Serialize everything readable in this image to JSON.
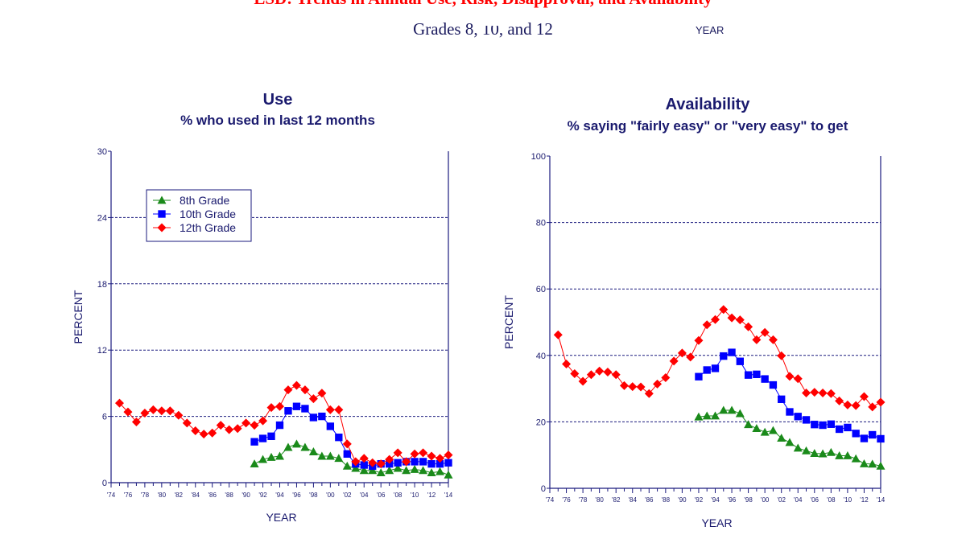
{
  "header": {
    "title": "LSD: Trends in Annual Use, Risk, Disapproval, and Availability",
    "subtitle": "Grades 8, 10, and 12",
    "stray_axis_label": "YEAR"
  },
  "colors": {
    "axis": "#1a1a7e",
    "text": "#1a1a6e",
    "grade8": "#1a8a1a",
    "grade10": "#0000ff",
    "grade12": "#ff0000"
  },
  "chart_data": [
    {
      "type": "line",
      "title": "Use",
      "subtitle": "% who used in last 12 months",
      "xlabel": "YEAR",
      "ylabel": "PERCENT",
      "xlim": [
        1974,
        2014
      ],
      "ylim": [
        0,
        30
      ],
      "yticks": [
        0,
        6,
        12,
        18,
        24,
        30
      ],
      "xtick_labels": [
        "'74",
        "'76",
        "'78",
        "'80",
        "'82",
        "'84",
        "'86",
        "'88",
        "'90",
        "'92",
        "'94",
        "'96",
        "'98",
        "'00",
        "'02",
        "'04",
        "'06",
        "'08",
        "'10",
        "'12",
        "'14"
      ],
      "grid": "horizontal dashed",
      "legend": "top-left",
      "series": [
        {
          "name": "8th Grade",
          "marker": "triangle",
          "x": [
            1991,
            1992,
            1993,
            1994,
            1995,
            1996,
            1997,
            1998,
            1999,
            2000,
            2001,
            2002,
            2003,
            2004,
            2005,
            2006,
            2007,
            2008,
            2009,
            2010,
            2011,
            2012,
            2013,
            2014
          ],
          "values": [
            1.7,
            2.1,
            2.3,
            2.4,
            3.2,
            3.5,
            3.2,
            2.8,
            2.4,
            2.4,
            2.2,
            1.5,
            1.3,
            1.1,
            1.1,
            0.9,
            1.1,
            1.3,
            1.1,
            1.2,
            1.1,
            0.9,
            1.0,
            0.7
          ]
        },
        {
          "name": "10th Grade",
          "marker": "square",
          "x": [
            1991,
            1992,
            1993,
            1994,
            1995,
            1996,
            1997,
            1998,
            1999,
            2000,
            2001,
            2002,
            2003,
            2004,
            2005,
            2006,
            2007,
            2008,
            2009,
            2010,
            2011,
            2012,
            2013,
            2014
          ],
          "values": [
            3.7,
            4.0,
            4.2,
            5.2,
            6.5,
            6.9,
            6.7,
            5.9,
            6.0,
            5.1,
            4.1,
            2.6,
            1.7,
            1.6,
            1.5,
            1.7,
            1.7,
            1.8,
            1.9,
            1.9,
            1.9,
            1.7,
            1.7,
            1.8
          ]
        },
        {
          "name": "12th Grade",
          "marker": "diamond",
          "x": [
            1975,
            1976,
            1977,
            1978,
            1979,
            1980,
            1981,
            1982,
            1983,
            1984,
            1985,
            1986,
            1987,
            1988,
            1989,
            1990,
            1991,
            1992,
            1993,
            1994,
            1995,
            1996,
            1997,
            1998,
            1999,
            2000,
            2001,
            2002,
            2003,
            2004,
            2005,
            2006,
            2007,
            2008,
            2009,
            2010,
            2011,
            2012,
            2013,
            2014
          ],
          "values": [
            7.2,
            6.4,
            5.5,
            6.3,
            6.6,
            6.5,
            6.5,
            6.1,
            5.4,
            4.7,
            4.4,
            4.5,
            5.2,
            4.8,
            4.9,
            5.4,
            5.2,
            5.6,
            6.8,
            6.9,
            8.4,
            8.8,
            8.4,
            7.6,
            8.1,
            6.6,
            6.6,
            3.5,
            1.9,
            2.2,
            1.8,
            1.7,
            2.1,
            2.7,
            1.9,
            2.6,
            2.7,
            2.4,
            2.2,
            2.5
          ]
        }
      ]
    },
    {
      "type": "line",
      "title": "Availability",
      "subtitle": "% saying \"fairly easy\" or \"very easy\" to get",
      "xlabel": "YEAR",
      "ylabel": "PERCENT",
      "xlim": [
        1974,
        2014
      ],
      "ylim": [
        0,
        100
      ],
      "yticks": [
        0,
        20,
        40,
        60,
        80,
        100
      ],
      "xtick_labels": [
        "'74",
        "'76",
        "'78",
        "'80",
        "'82",
        "'84",
        "'86",
        "'88",
        "'90",
        "'92",
        "'94",
        "'96",
        "'98",
        "'00",
        "'02",
        "'04",
        "'06",
        "'08",
        "'10",
        "'12",
        "'14"
      ],
      "grid": "horizontal dashed",
      "legend": "none",
      "series": [
        {
          "name": "8th Grade",
          "marker": "triangle",
          "x": [
            1992,
            1993,
            1994,
            1995,
            1996,
            1997,
            1998,
            1999,
            2000,
            2001,
            2002,
            2003,
            2004,
            2005,
            2006,
            2007,
            2008,
            2009,
            2010,
            2011,
            2012,
            2013,
            2014
          ],
          "values": [
            21.5,
            21.8,
            21.8,
            23.5,
            23.5,
            22.5,
            19.2,
            18.0,
            16.9,
            17.4,
            15.1,
            13.8,
            12.1,
            11.3,
            10.5,
            10.4,
            10.8,
            9.8,
            9.8,
            8.9,
            7.4,
            7.3,
            6.7
          ]
        },
        {
          "name": "10th Grade",
          "marker": "square",
          "x": [
            1992,
            1993,
            1994,
            1995,
            1996,
            1997,
            1998,
            1999,
            2000,
            2001,
            2002,
            2003,
            2004,
            2005,
            2006,
            2007,
            2008,
            2009,
            2010,
            2011,
            2012,
            2013,
            2014
          ],
          "values": [
            33.6,
            35.6,
            36.1,
            39.8,
            40.9,
            38.2,
            34.1,
            34.3,
            32.9,
            31.1,
            26.8,
            23.0,
            21.6,
            20.6,
            19.2,
            19.0,
            19.3,
            17.8,
            18.3,
            16.5,
            15.0,
            16.1,
            14.9
          ]
        },
        {
          "name": "12th Grade",
          "marker": "diamond",
          "x": [
            1975,
            1976,
            1977,
            1978,
            1979,
            1980,
            1981,
            1982,
            1983,
            1984,
            1985,
            1986,
            1987,
            1988,
            1989,
            1990,
            1991,
            1992,
            1993,
            1994,
            1995,
            1996,
            1997,
            1998,
            1999,
            2000,
            2001,
            2002,
            2003,
            2004,
            2005,
            2006,
            2007,
            2008,
            2009,
            2010,
            2011,
            2012,
            2013,
            2014
          ],
          "values": [
            46.2,
            37.4,
            34.5,
            32.2,
            34.2,
            35.3,
            35.0,
            34.2,
            30.9,
            30.6,
            30.5,
            28.5,
            31.4,
            33.3,
            38.3,
            40.7,
            39.5,
            44.5,
            49.2,
            50.8,
            53.8,
            51.3,
            50.7,
            48.6,
            44.7,
            46.9,
            44.7,
            39.9,
            33.7,
            33.0,
            28.7,
            28.9,
            28.7,
            28.5,
            26.3,
            25.1,
            24.9,
            27.6,
            24.5,
            25.9
          ]
        }
      ]
    }
  ]
}
